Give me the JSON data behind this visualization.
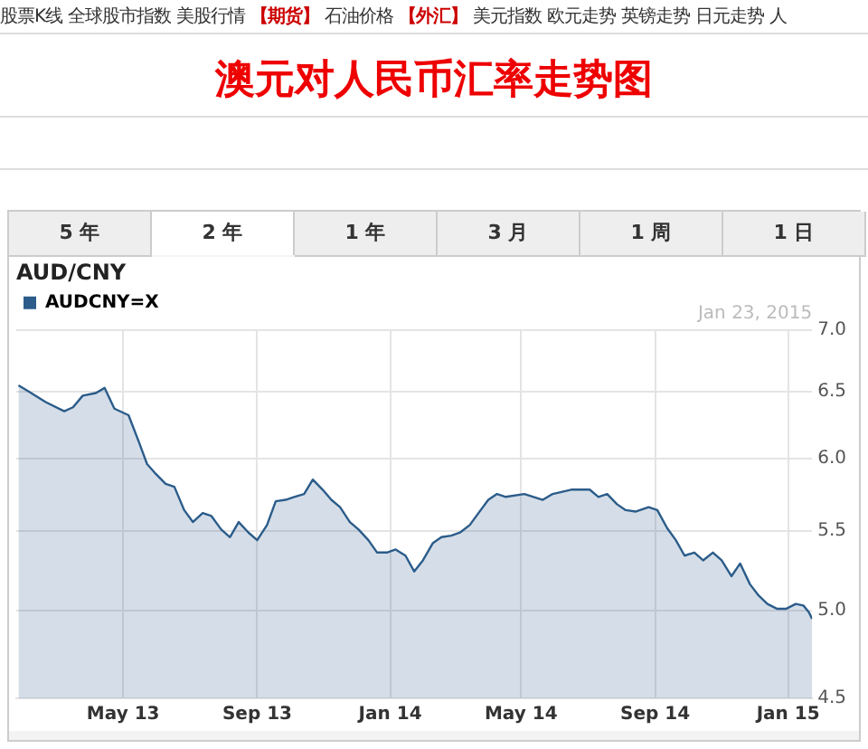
{
  "chart_data": {
    "type": "area",
    "title": "澳元对人民币汇率走势图",
    "subtitle": "AUD/CNY",
    "annotations": [
      "Jan 23, 2015",
      "股票K线",
      "全球股市指数",
      "美股行情",
      "【期货】",
      "石油价格",
      "【外汇】",
      "美元指数",
      "欧元走势",
      "英镑走势",
      "日元走势",
      "人",
      "5 年",
      "2 年",
      "1 年",
      "3 月",
      "1 周",
      "1 日"
    ],
    "x": [
      "2013-01-25",
      "2013-02-02",
      "2013-02-19",
      "2013-03-08",
      "2013-03-16",
      "2013-03-25",
      "2013-04-06",
      "2013-04-14",
      "2013-04-23",
      "2013-05-06",
      "2013-05-15",
      "2013-05-23",
      "2013-05-31",
      "2013-06-09",
      "2013-06-17",
      "2013-06-26",
      "2013-07-04",
      "2013-07-13",
      "2013-07-21",
      "2013-07-30",
      "2013-08-07",
      "2013-08-15",
      "2013-08-24",
      "2013-09-01",
      "2013-09-10",
      "2013-09-18",
      "2013-09-27",
      "2013-10-05",
      "2013-10-14",
      "2013-10-22",
      "2013-10-31",
      "2013-11-08",
      "2013-11-16",
      "2013-11-25",
      "2013-12-03",
      "2013-12-12",
      "2013-12-20",
      "2013-12-29",
      "2014-01-06",
      "2014-01-15",
      "2014-01-23",
      "2014-01-31",
      "2014-02-09",
      "2014-02-17",
      "2014-02-26",
      "2014-03-06",
      "2014-03-15",
      "2014-03-23",
      "2014-04-01",
      "2014-04-09",
      "2014-04-17",
      "2014-05-04",
      "2014-05-21",
      "2014-05-30",
      "2014-06-16",
      "2014-07-03",
      "2014-07-11",
      "2014-07-19",
      "2014-07-28",
      "2014-08-05",
      "2014-08-14",
      "2014-08-26",
      "2014-09-03",
      "2014-09-12",
      "2014-09-20",
      "2014-09-28",
      "2014-10-07",
      "2014-10-15",
      "2014-10-24",
      "2014-11-01",
      "2014-11-10",
      "2014-11-18",
      "2014-11-27",
      "2014-12-05",
      "2014-12-13",
      "2014-12-22",
      "2014-12-30",
      "2015-01-08",
      "2015-01-15",
      "2015-01-20",
      "2015-01-23"
    ],
    "series": [
      {
        "name": "AUDCNY=X",
        "color": "#2b5c8a",
        "values": [
          6.55,
          6.51,
          6.42,
          6.35,
          6.38,
          6.47,
          6.49,
          6.53,
          6.37,
          6.32,
          6.13,
          5.96,
          5.89,
          5.82,
          5.8,
          5.64,
          5.56,
          5.62,
          5.6,
          5.51,
          5.46,
          5.56,
          5.49,
          5.44,
          5.54,
          5.7,
          5.71,
          5.73,
          5.75,
          5.85,
          5.78,
          5.71,
          5.66,
          5.56,
          5.51,
          5.44,
          5.36,
          5.36,
          5.38,
          5.34,
          5.24,
          5.31,
          5.42,
          5.46,
          5.47,
          5.49,
          5.54,
          5.62,
          5.71,
          5.75,
          5.73,
          5.75,
          5.71,
          5.75,
          5.78,
          5.78,
          5.73,
          5.75,
          5.68,
          5.64,
          5.63,
          5.66,
          5.64,
          5.52,
          5.44,
          5.34,
          5.36,
          5.31,
          5.36,
          5.31,
          5.21,
          5.29,
          5.16,
          5.09,
          5.04,
          5.01,
          5.01,
          5.04,
          5.03,
          4.99,
          4.95
        ]
      }
    ],
    "xlim": [
      "2013-01-23",
      "2015-01-23"
    ],
    "xticks": [
      {
        "value": "2013-05-01",
        "label": "May 13"
      },
      {
        "value": "2013-09-01",
        "label": "Sep 13"
      },
      {
        "value": "2014-01-01",
        "label": "Jan 14"
      },
      {
        "value": "2014-05-01",
        "label": "May 14"
      },
      {
        "value": "2014-09-01",
        "label": "Sep 14"
      },
      {
        "value": "2015-01-01",
        "label": "Jan 15"
      }
    ],
    "ylim": [
      4.5,
      7
    ],
    "yticks": [
      {
        "value": 4.5,
        "label": "4.5"
      },
      {
        "value": 5,
        "label": "5.0"
      },
      {
        "value": 5.5,
        "label": "5.5"
      },
      {
        "value": 6,
        "label": "6.0"
      },
      {
        "value": 6.5,
        "label": "6.5"
      },
      {
        "value": 7,
        "label": "7.0"
      }
    ],
    "log": "y",
    "grid": true,
    "legend": "top left",
    "marker": "none",
    "line_style": "solid"
  }
}
